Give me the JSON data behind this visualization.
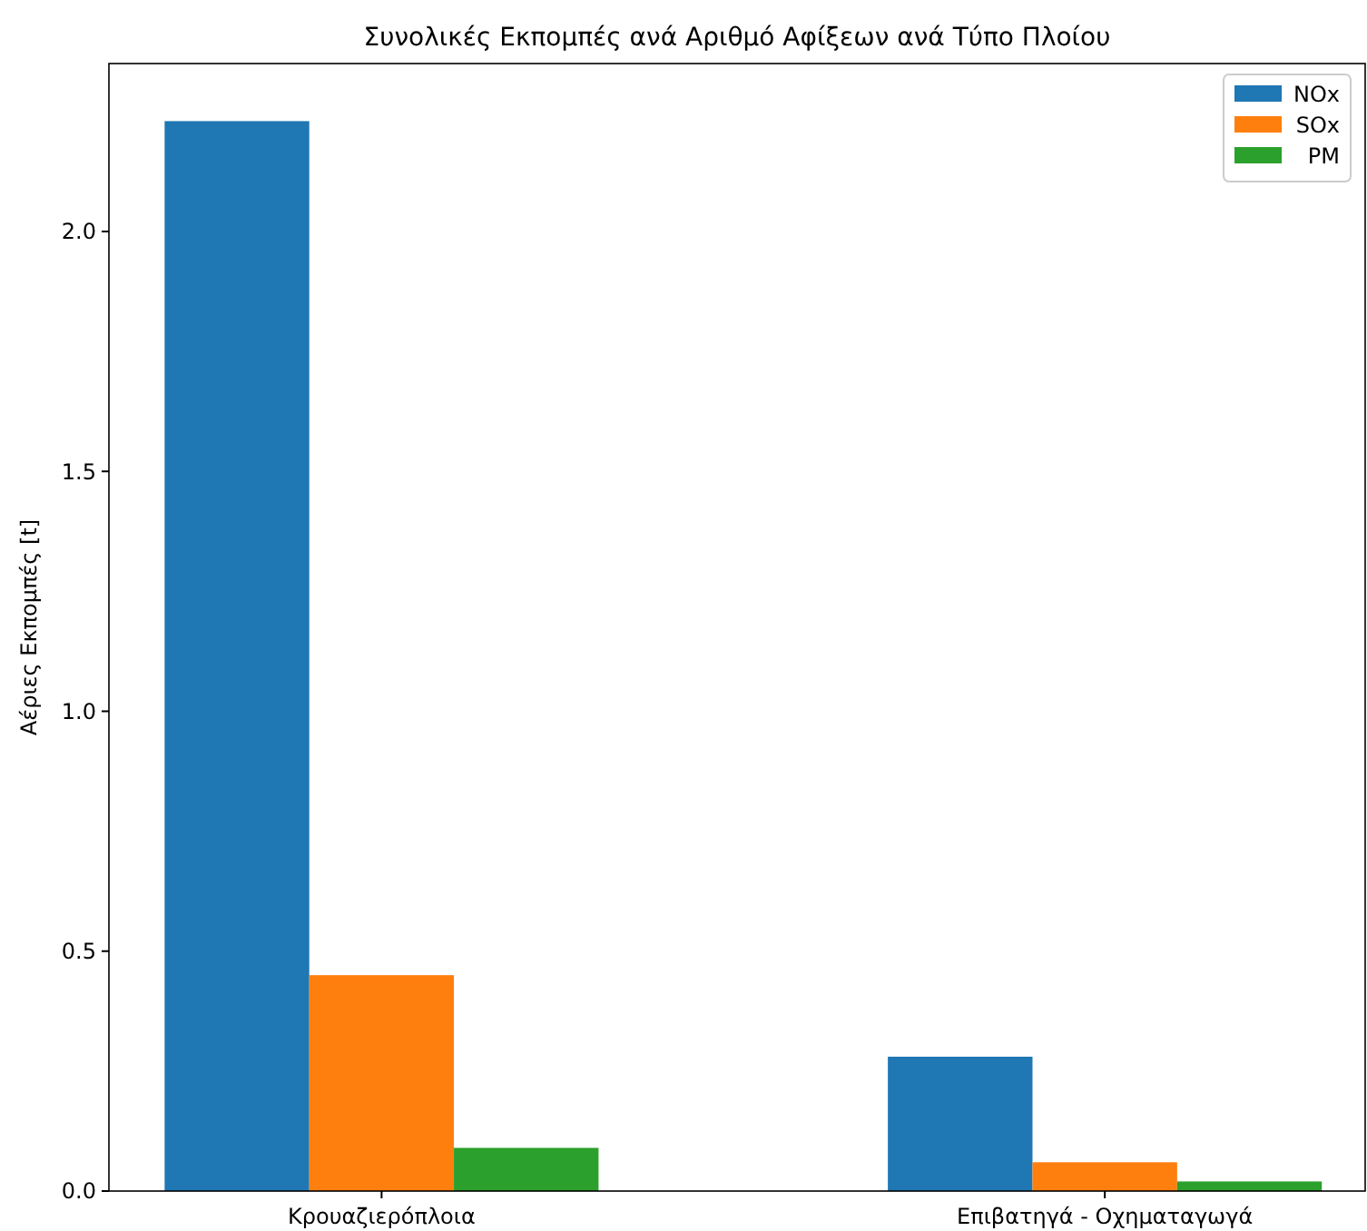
{
  "chart_data": {
    "type": "bar",
    "title": "Συνολικές Εκπομπές ανά Αριθμό Αφίξεων ανά Τύπο Πλοίου",
    "ylabel": "Αέριες Εκπομπές [t]",
    "categories": [
      "Κρουαζιερόπλοια",
      "Επιβατηγά - Οχηματαγωγά"
    ],
    "series": [
      {
        "name": "NOx",
        "color": "#1f77b4",
        "values": [
          2.23,
          0.28
        ]
      },
      {
        "name": "SOx",
        "color": "#ff7f0e",
        "values": [
          0.45,
          0.06
        ]
      },
      {
        "name": "PM",
        "color": "#2ca02c",
        "values": [
          0.09,
          0.02
        ]
      }
    ],
    "ylim": [
      0,
      2.35
    ],
    "yticks": [
      {
        "value": 0,
        "label": "0.0"
      },
      {
        "value": 0.5,
        "label": "0.5"
      },
      {
        "value": 1,
        "label": "1.0"
      },
      {
        "value": 1.5,
        "label": "1.5"
      },
      {
        "value": 2,
        "label": "2.0"
      }
    ],
    "grid": false,
    "legend": "top right"
  }
}
